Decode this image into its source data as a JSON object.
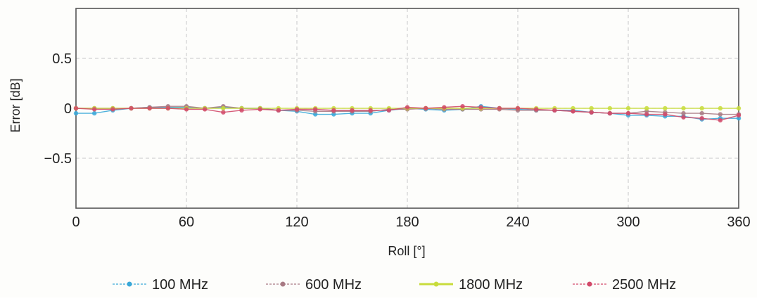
{
  "chart_data": {
    "type": "line",
    "xlabel": "Roll [°]",
    "ylabel": "Error [dB]",
    "xlim": [
      0,
      360
    ],
    "ylim": [
      -1,
      1
    ],
    "x_ticks": [
      0,
      60,
      120,
      180,
      240,
      300,
      360
    ],
    "x_tick_labels": [
      "0",
      "60",
      "120",
      "180",
      "240",
      "300",
      "360"
    ],
    "y_ticks": [
      0.5,
      0,
      -0.5
    ],
    "y_tick_labels": [
      "0.5",
      "0",
      "−0.5"
    ],
    "grid": true,
    "legend_position": "bottom",
    "x": [
      0,
      10,
      20,
      30,
      40,
      50,
      60,
      70,
      80,
      90,
      100,
      110,
      120,
      130,
      140,
      150,
      160,
      170,
      180,
      190,
      200,
      210,
      220,
      230,
      240,
      250,
      260,
      270,
      280,
      290,
      300,
      310,
      320,
      330,
      340,
      350,
      360
    ],
    "series": [
      {
        "name": "100 MHz",
        "color": "#3aa8d8",
        "values": [
          -0.05,
          -0.05,
          -0.02,
          0.0,
          0.01,
          0.01,
          0.01,
          0.0,
          0.01,
          0.0,
          0.0,
          -0.02,
          -0.03,
          -0.06,
          -0.06,
          -0.05,
          -0.05,
          -0.02,
          0.0,
          -0.01,
          -0.02,
          -0.01,
          0.02,
          0.0,
          -0.01,
          -0.02,
          -0.02,
          -0.02,
          -0.04,
          -0.05,
          -0.07,
          -0.07,
          -0.08,
          -0.08,
          -0.11,
          -0.1,
          -0.1
        ]
      },
      {
        "name": "600 MHz",
        "color": "#a87a84",
        "values": [
          0.0,
          0.0,
          0.0,
          0.0,
          0.01,
          0.02,
          0.02,
          0.0,
          0.02,
          0.0,
          0.0,
          -0.02,
          -0.02,
          -0.03,
          -0.03,
          -0.03,
          -0.03,
          -0.01,
          -0.01,
          0.0,
          -0.01,
          -0.01,
          -0.01,
          -0.01,
          -0.02,
          -0.02,
          -0.02,
          -0.03,
          -0.04,
          -0.05,
          -0.05,
          -0.03,
          -0.04,
          -0.05,
          -0.05,
          -0.06,
          -0.06
        ]
      },
      {
        "name": "1800 MHz",
        "color": "#c8dc3c",
        "values": [
          0.0,
          0.0,
          0.0,
          0.0,
          0.0,
          0.0,
          0.0,
          0.0,
          0.0,
          0.0,
          0.0,
          0.0,
          0.0,
          0.0,
          0.0,
          0.0,
          0.0,
          0.0,
          0.0,
          0.0,
          0.0,
          0.0,
          0.0,
          0.0,
          0.0,
          0.0,
          0.0,
          0.0,
          0.0,
          0.0,
          0.0,
          0.0,
          0.0,
          0.0,
          0.0,
          0.0,
          0.0
        ]
      },
      {
        "name": "2500 MHz",
        "color": "#d24a6a",
        "values": [
          0.0,
          -0.01,
          -0.01,
          0.0,
          0.0,
          0.0,
          -0.01,
          -0.01,
          -0.04,
          -0.02,
          -0.01,
          -0.02,
          -0.01,
          -0.01,
          -0.02,
          -0.02,
          -0.02,
          -0.02,
          0.01,
          0.0,
          0.01,
          0.02,
          0.01,
          0.0,
          0.0,
          -0.01,
          -0.02,
          -0.03,
          -0.04,
          -0.05,
          -0.05,
          -0.06,
          -0.06,
          -0.09,
          -0.1,
          -0.12,
          -0.07
        ]
      }
    ]
  }
}
